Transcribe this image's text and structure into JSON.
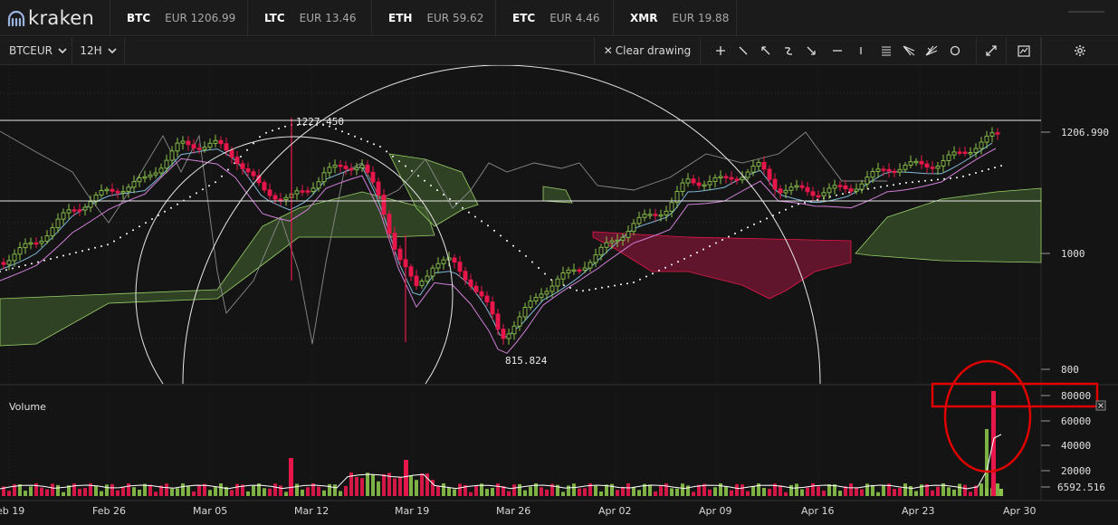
{
  "brand": {
    "name": "kraken"
  },
  "tickers": [
    {
      "symbol": "BTC",
      "currency": "EUR",
      "price": "1206.99"
    },
    {
      "symbol": "LTC",
      "currency": "EUR",
      "price": "13.46"
    },
    {
      "symbol": "ETH",
      "currency": "EUR",
      "price": "59.62"
    },
    {
      "symbol": "ETC",
      "currency": "EUR",
      "price": "4.46"
    },
    {
      "symbol": "XMR",
      "currency": "EUR",
      "price": "19.88"
    }
  ],
  "toolbar": {
    "pair": "BTCEUR",
    "interval": "12H",
    "clear_drawing": "Clear drawing",
    "tools": [
      "plus-icon",
      "trend-line-icon",
      "arrow-icon",
      "curve-icon",
      "arrow-down-icon",
      "horizontal-line-icon",
      "vertical-line-icon",
      "parallel-lines-icon",
      "fan-icon",
      "fib-fan-icon",
      "circle-icon"
    ]
  },
  "chart": {
    "price_axis_labels": [
      "1206.990",
      "1000",
      "800"
    ],
    "annotation_high": "1227.450",
    "annotation_low": "815.824",
    "volume_title": "Volume",
    "volume_axis_labels": [
      "80000",
      "60000",
      "40000",
      "20000",
      "6592.516"
    ],
    "x_labels": [
      "eb 19",
      "Feb 26",
      "Mar 05",
      "Mar 12",
      "Mar 19",
      "Mar 26",
      "Apr 02",
      "Apr 09",
      "Apr 16",
      "Apr 23",
      "Apr 30"
    ],
    "colors": {
      "up": "#8bc34a",
      "down": "#e8174b",
      "cloud_bull": "#3f5a2c",
      "cloud_bear": "#6d1530",
      "annotation": "#e00000"
    }
  }
}
